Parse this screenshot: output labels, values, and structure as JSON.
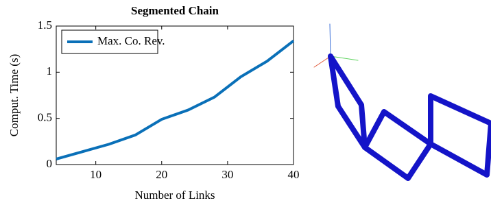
{
  "chart_data": {
    "type": "line",
    "title": "Segmented Chain",
    "x_label": "Number of Links",
    "y_label": "Comput. Time (s)",
    "x": [
      4,
      8,
      12,
      16,
      20,
      24,
      28,
      32,
      36,
      40
    ],
    "series": [
      {
        "name": "Max. Co. Rev.",
        "color": "#0a70b8",
        "values": [
          0.06,
          0.14,
          0.22,
          0.32,
          0.49,
          0.59,
          0.73,
          0.95,
          1.12,
          1.34
        ]
      }
    ],
    "xlim": [
      4,
      40
    ],
    "xticks": [
      10,
      20,
      30,
      40
    ],
    "ylim": [
      0,
      1.5
    ],
    "yticks": [
      0,
      0.5,
      1,
      1.5
    ],
    "legend": "upper left"
  }
}
